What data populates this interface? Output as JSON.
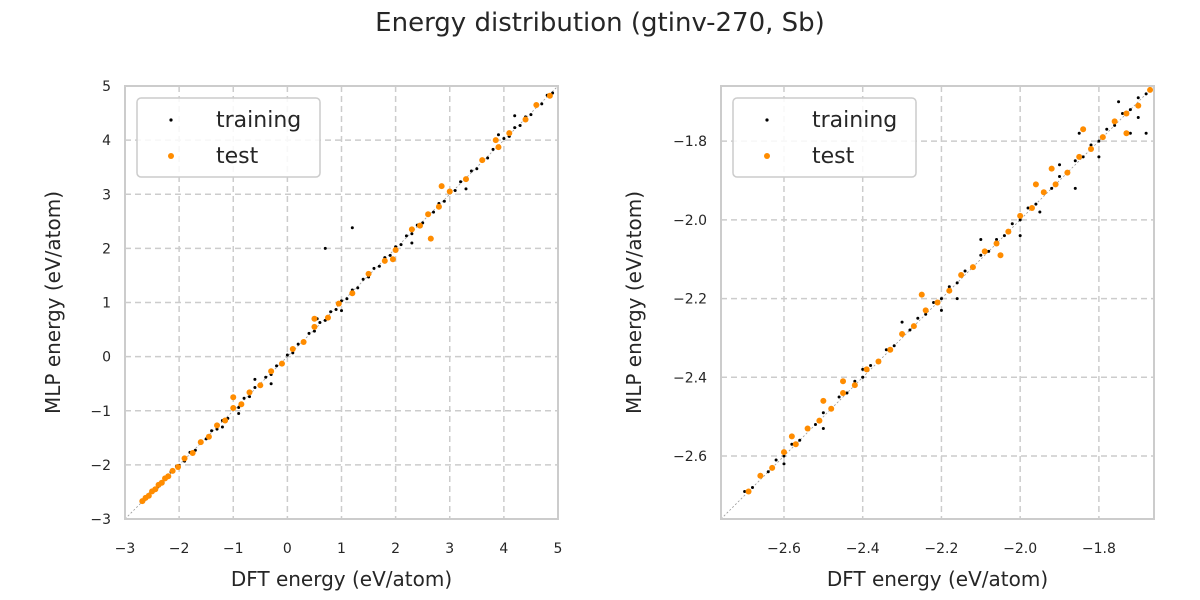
{
  "figure": {
    "title": "Energy distribution (gtinv-270, Sb)"
  },
  "colors": {
    "training": "#000000",
    "test": "#ff8c00",
    "grid": "#cccccc",
    "frame": "#cccccc",
    "diagonal": "#999999"
  },
  "chart_data": [
    {
      "type": "scatter",
      "title": "",
      "xlabel": "DFT energy (eV/atom)",
      "ylabel": "MLP energy (eV/atom)",
      "xlim": [
        -3,
        5
      ],
      "ylim": [
        -3,
        5
      ],
      "xticks": [
        -3,
        -2,
        -1,
        0,
        1,
        2,
        3,
        4,
        5
      ],
      "yticks": [
        -3,
        -2,
        -1,
        0,
        1,
        2,
        3,
        4,
        5
      ],
      "grid": true,
      "legend_position": "top-left",
      "diagonal": true,
      "series": [
        {
          "name": "training",
          "color": "#000000",
          "points": [
            [
              -2.7,
              -2.68
            ],
            [
              -2.65,
              -2.66
            ],
            [
              -2.6,
              -2.61
            ],
            [
              -2.55,
              -2.54
            ],
            [
              -2.5,
              -2.51
            ],
            [
              -2.45,
              -2.47
            ],
            [
              -2.4,
              -2.41
            ],
            [
              -2.35,
              -2.33
            ],
            [
              -2.3,
              -2.31
            ],
            [
              -2.25,
              -2.24
            ],
            [
              -2.2,
              -2.22
            ],
            [
              -2.15,
              -2.13
            ],
            [
              -2.1,
              -2.12
            ],
            [
              -2.05,
              -2.03
            ],
            [
              -2.0,
              -2.01
            ],
            [
              -1.9,
              -1.93
            ],
            [
              -1.8,
              -1.77
            ],
            [
              -1.7,
              -1.73
            ],
            [
              -1.6,
              -1.58
            ],
            [
              -1.5,
              -1.52
            ],
            [
              -1.4,
              -1.37
            ],
            [
              -1.3,
              -1.34
            ],
            [
              -1.2,
              -1.18
            ],
            [
              -1.1,
              -1.14
            ],
            [
              -1.0,
              -0.97
            ],
            [
              -0.9,
              -0.94
            ],
            [
              -0.8,
              -0.77
            ],
            [
              -0.7,
              -0.74
            ],
            [
              -0.6,
              -0.57
            ],
            [
              -0.5,
              -0.53
            ],
            [
              -0.4,
              -0.38
            ],
            [
              -0.3,
              -0.33
            ],
            [
              -0.2,
              -0.17
            ],
            [
              -0.1,
              -0.13
            ],
            [
              0.0,
              0.03
            ],
            [
              0.1,
              0.07
            ],
            [
              0.2,
              0.23
            ],
            [
              0.3,
              0.27
            ],
            [
              0.4,
              0.43
            ],
            [
              0.5,
              0.47
            ],
            [
              0.6,
              0.63
            ],
            [
              0.7,
              0.67
            ],
            [
              0.8,
              0.83
            ],
            [
              0.9,
              0.87
            ],
            [
              1.0,
              1.03
            ],
            [
              1.1,
              1.07
            ],
            [
              1.2,
              1.23
            ],
            [
              1.3,
              1.27
            ],
            [
              1.4,
              1.43
            ],
            [
              1.5,
              1.47
            ],
            [
              1.6,
              1.63
            ],
            [
              1.7,
              1.67
            ],
            [
              1.8,
              1.83
            ],
            [
              1.9,
              1.87
            ],
            [
              2.0,
              2.03
            ],
            [
              2.1,
              2.07
            ],
            [
              2.2,
              2.23
            ],
            [
              2.3,
              2.27
            ],
            [
              2.4,
              2.43
            ],
            [
              2.5,
              2.47
            ],
            [
              2.6,
              2.63
            ],
            [
              2.7,
              2.67
            ],
            [
              2.8,
              2.83
            ],
            [
              2.9,
              2.87
            ],
            [
              3.0,
              3.03
            ],
            [
              3.1,
              3.07
            ],
            [
              3.2,
              3.23
            ],
            [
              3.3,
              3.27
            ],
            [
              3.4,
              3.43
            ],
            [
              3.5,
              3.47
            ],
            [
              3.6,
              3.63
            ],
            [
              3.7,
              3.67
            ],
            [
              3.8,
              3.83
            ],
            [
              3.9,
              3.87
            ],
            [
              4.0,
              4.03
            ],
            [
              4.1,
              4.07
            ],
            [
              4.2,
              4.23
            ],
            [
              4.3,
              4.27
            ],
            [
              4.4,
              4.43
            ],
            [
              4.5,
              4.47
            ],
            [
              4.6,
              4.63
            ],
            [
              4.7,
              4.67
            ],
            [
              4.8,
              4.83
            ],
            [
              4.9,
              4.87
            ],
            [
              -1.2,
              -1.3
            ],
            [
              -0.9,
              -1.05
            ],
            [
              -0.6,
              -0.42
            ],
            [
              0.55,
              0.7
            ],
            [
              1.0,
              0.85
            ],
            [
              2.3,
              2.1
            ],
            [
              3.3,
              3.1
            ],
            [
              3.9,
              4.1
            ],
            [
              4.2,
              4.45
            ],
            [
              1.2,
              2.38
            ],
            [
              0.7,
              2.0
            ],
            [
              -0.3,
              -0.5
            ]
          ]
        },
        {
          "name": "test",
          "color": "#ff8c00",
          "points": [
            [
              -2.68,
              -2.67
            ],
            [
              -2.62,
              -2.61
            ],
            [
              -2.56,
              -2.57
            ],
            [
              -2.5,
              -2.49
            ],
            [
              -2.44,
              -2.45
            ],
            [
              -2.38,
              -2.37
            ],
            [
              -2.32,
              -2.33
            ],
            [
              -2.26,
              -2.25
            ],
            [
              -2.2,
              -2.21
            ],
            [
              -2.12,
              -2.11
            ],
            [
              -2.02,
              -2.04
            ],
            [
              -1.9,
              -1.88
            ],
            [
              -1.75,
              -1.78
            ],
            [
              -1.6,
              -1.58
            ],
            [
              -1.45,
              -1.48
            ],
            [
              -1.3,
              -1.27
            ],
            [
              -1.15,
              -1.18
            ],
            [
              -1.0,
              -0.95
            ],
            [
              -0.85,
              -0.88
            ],
            [
              -0.7,
              -0.66
            ],
            [
              -0.5,
              -0.53
            ],
            [
              -0.3,
              -0.27
            ],
            [
              -0.1,
              -0.13
            ],
            [
              0.1,
              0.14
            ],
            [
              0.3,
              0.27
            ],
            [
              0.5,
              0.55
            ],
            [
              0.75,
              0.72
            ],
            [
              0.95,
              0.98
            ],
            [
              1.2,
              1.17
            ],
            [
              1.5,
              1.53
            ],
            [
              1.8,
              1.77
            ],
            [
              2.0,
              1.97
            ],
            [
              2.3,
              2.35
            ],
            [
              2.45,
              2.42
            ],
            [
              2.6,
              2.63
            ],
            [
              2.8,
              2.77
            ],
            [
              3.0,
              3.05
            ],
            [
              3.3,
              3.28
            ],
            [
              3.6,
              3.63
            ],
            [
              3.9,
              3.87
            ],
            [
              4.1,
              4.13
            ],
            [
              4.4,
              4.38
            ],
            [
              4.6,
              4.65
            ],
            [
              4.85,
              4.82
            ],
            [
              2.65,
              2.18
            ],
            [
              2.85,
              3.15
            ],
            [
              3.85,
              4.0
            ],
            [
              -1.0,
              -0.75
            ],
            [
              0.5,
              0.7
            ],
            [
              1.95,
              1.8
            ]
          ]
        }
      ]
    },
    {
      "type": "scatter",
      "title": "",
      "xlabel": "DFT energy (eV/atom)",
      "ylabel": "MLP energy (eV/atom)",
      "xlim": [
        -2.76,
        -1.66
      ],
      "ylim": [
        -2.76,
        -1.66
      ],
      "xticks": [
        -2.6,
        -2.4,
        -2.2,
        -2.0,
        -1.8
      ],
      "yticks": [
        -2.6,
        -2.4,
        -2.2,
        -2.0,
        -1.8
      ],
      "grid": true,
      "legend_position": "top-left",
      "diagonal": true,
      "series": [
        {
          "name": "training",
          "color": "#000000",
          "points": [
            [
              -2.7,
              -2.69
            ],
            [
              -2.68,
              -2.68
            ],
            [
              -2.66,
              -2.65
            ],
            [
              -2.64,
              -2.64
            ],
            [
              -2.62,
              -2.61
            ],
            [
              -2.6,
              -2.6
            ],
            [
              -2.58,
              -2.57
            ],
            [
              -2.56,
              -2.56
            ],
            [
              -2.54,
              -2.53
            ],
            [
              -2.52,
              -2.52
            ],
            [
              -2.5,
              -2.49
            ],
            [
              -2.48,
              -2.48
            ],
            [
              -2.46,
              -2.45
            ],
            [
              -2.44,
              -2.44
            ],
            [
              -2.42,
              -2.41
            ],
            [
              -2.4,
              -2.4
            ],
            [
              -2.38,
              -2.37
            ],
            [
              -2.36,
              -2.36
            ],
            [
              -2.34,
              -2.33
            ],
            [
              -2.32,
              -2.32
            ],
            [
              -2.3,
              -2.29
            ],
            [
              -2.28,
              -2.28
            ],
            [
              -2.26,
              -2.25
            ],
            [
              -2.24,
              -2.24
            ],
            [
              -2.22,
              -2.21
            ],
            [
              -2.2,
              -2.2
            ],
            [
              -2.18,
              -2.17
            ],
            [
              -2.16,
              -2.16
            ],
            [
              -2.14,
              -2.13
            ],
            [
              -2.12,
              -2.12
            ],
            [
              -2.1,
              -2.09
            ],
            [
              -2.08,
              -2.08
            ],
            [
              -2.06,
              -2.05
            ],
            [
              -2.04,
              -2.04
            ],
            [
              -2.02,
              -2.01
            ],
            [
              -2.0,
              -2.0
            ],
            [
              -1.98,
              -1.97
            ],
            [
              -1.96,
              -1.96
            ],
            [
              -1.94,
              -1.93
            ],
            [
              -1.92,
              -1.92
            ],
            [
              -1.9,
              -1.89
            ],
            [
              -1.88,
              -1.88
            ],
            [
              -1.86,
              -1.85
            ],
            [
              -1.84,
              -1.84
            ],
            [
              -1.82,
              -1.81
            ],
            [
              -1.8,
              -1.8
            ],
            [
              -1.78,
              -1.77
            ],
            [
              -1.76,
              -1.76
            ],
            [
              -1.74,
              -1.73
            ],
            [
              -1.72,
              -1.72
            ],
            [
              -1.7,
              -1.69
            ],
            [
              -1.68,
              -1.68
            ],
            [
              -2.5,
              -2.53
            ],
            [
              -2.3,
              -2.26
            ],
            [
              -2.16,
              -2.2
            ],
            [
              -2.1,
              -2.05
            ],
            [
              -2.0,
              -2.04
            ],
            [
              -1.9,
              -1.86
            ],
            [
              -1.86,
              -1.92
            ],
            [
              -1.8,
              -1.84
            ],
            [
              -1.75,
              -1.7
            ],
            [
              -1.72,
              -1.78
            ],
            [
              -1.7,
              -1.74
            ],
            [
              -1.68,
              -1.78
            ],
            [
              -1.85,
              -1.78
            ],
            [
              -1.95,
              -1.98
            ],
            [
              -2.2,
              -2.23
            ],
            [
              -2.4,
              -2.38
            ],
            [
              -2.6,
              -2.62
            ]
          ]
        },
        {
          "name": "test",
          "color": "#ff8c00",
          "points": [
            [
              -2.69,
              -2.69
            ],
            [
              -2.66,
              -2.65
            ],
            [
              -2.63,
              -2.63
            ],
            [
              -2.6,
              -2.59
            ],
            [
              -2.57,
              -2.57
            ],
            [
              -2.54,
              -2.53
            ],
            [
              -2.51,
              -2.51
            ],
            [
              -2.48,
              -2.48
            ],
            [
              -2.45,
              -2.44
            ],
            [
              -2.42,
              -2.42
            ],
            [
              -2.39,
              -2.38
            ],
            [
              -2.36,
              -2.36
            ],
            [
              -2.33,
              -2.33
            ],
            [
              -2.3,
              -2.29
            ],
            [
              -2.27,
              -2.27
            ],
            [
              -2.24,
              -2.23
            ],
            [
              -2.21,
              -2.21
            ],
            [
              -2.18,
              -2.18
            ],
            [
              -2.15,
              -2.14
            ],
            [
              -2.12,
              -2.12
            ],
            [
              -2.09,
              -2.08
            ],
            [
              -2.06,
              -2.06
            ],
            [
              -2.03,
              -2.03
            ],
            [
              -2.0,
              -1.99
            ],
            [
              -1.97,
              -1.97
            ],
            [
              -1.94,
              -1.93
            ],
            [
              -1.91,
              -1.91
            ],
            [
              -1.88,
              -1.88
            ],
            [
              -1.85,
              -1.84
            ],
            [
              -1.82,
              -1.82
            ],
            [
              -1.79,
              -1.79
            ],
            [
              -1.76,
              -1.75
            ],
            [
              -1.73,
              -1.73
            ],
            [
              -1.7,
              -1.71
            ],
            [
              -1.67,
              -1.67
            ],
            [
              -1.96,
              -1.91
            ],
            [
              -1.92,
              -1.87
            ],
            [
              -1.84,
              -1.77
            ],
            [
              -1.73,
              -1.78
            ],
            [
              -2.05,
              -2.09
            ],
            [
              -2.25,
              -2.19
            ],
            [
              -2.58,
              -2.55
            ],
            [
              -2.5,
              -2.46
            ],
            [
              -2.45,
              -2.41
            ]
          ]
        }
      ]
    }
  ]
}
